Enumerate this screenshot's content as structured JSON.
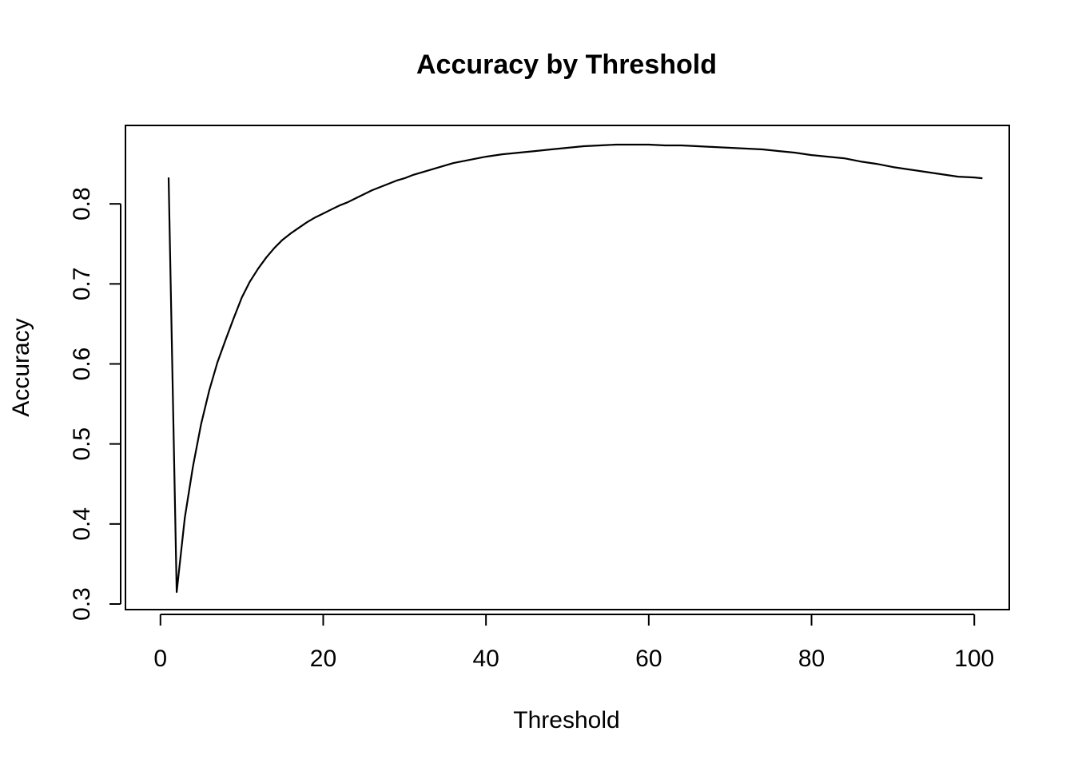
{
  "chart_data": {
    "type": "line",
    "title": "Accuracy by Threshold",
    "xlabel": "Threshold",
    "ylabel": "Accuracy",
    "xlim": [
      -4.2,
      104.2
    ],
    "ylim": [
      0.294,
      0.897
    ],
    "x_ticks": [
      0,
      20,
      40,
      60,
      80,
      100
    ],
    "y_ticks": [
      0.3,
      0.4,
      0.5,
      0.6,
      0.7,
      0.8
    ],
    "x_tick_labels": [
      "0",
      "20",
      "40",
      "60",
      "80",
      "100"
    ],
    "y_tick_labels": [
      "0.3",
      "0.4",
      "0.5",
      "0.6",
      "0.7",
      "0.8"
    ],
    "grid": false,
    "series": [
      {
        "color": "#000000",
        "x": [
          1,
          2,
          3,
          4,
          5,
          6,
          7,
          8,
          9,
          10,
          11,
          12,
          13,
          14,
          15,
          16,
          17,
          18,
          19,
          20,
          21,
          22,
          23,
          24,
          25,
          26,
          27,
          28,
          29,
          30,
          31,
          32,
          33,
          34,
          35,
          36,
          37,
          38,
          39,
          40,
          42,
          44,
          46,
          48,
          50,
          52,
          54,
          56,
          58,
          60,
          62,
          64,
          66,
          68,
          70,
          72,
          74,
          76,
          78,
          80,
          82,
          84,
          86,
          88,
          90,
          92,
          94,
          96,
          98,
          100,
          101
        ],
        "y": [
          0.833,
          0.315,
          0.408,
          0.472,
          0.525,
          0.567,
          0.602,
          0.63,
          0.657,
          0.683,
          0.703,
          0.719,
          0.733,
          0.745,
          0.755,
          0.763,
          0.77,
          0.777,
          0.783,
          0.788,
          0.793,
          0.798,
          0.802,
          0.807,
          0.812,
          0.817,
          0.821,
          0.825,
          0.829,
          0.832,
          0.836,
          0.839,
          0.842,
          0.845,
          0.848,
          0.851,
          0.853,
          0.855,
          0.857,
          0.859,
          0.862,
          0.864,
          0.866,
          0.868,
          0.87,
          0.872,
          0.873,
          0.874,
          0.874,
          0.874,
          0.873,
          0.873,
          0.872,
          0.871,
          0.87,
          0.869,
          0.868,
          0.866,
          0.864,
          0.861,
          0.859,
          0.857,
          0.853,
          0.85,
          0.846,
          0.843,
          0.84,
          0.837,
          0.834,
          0.833,
          0.832
        ]
      }
    ]
  }
}
